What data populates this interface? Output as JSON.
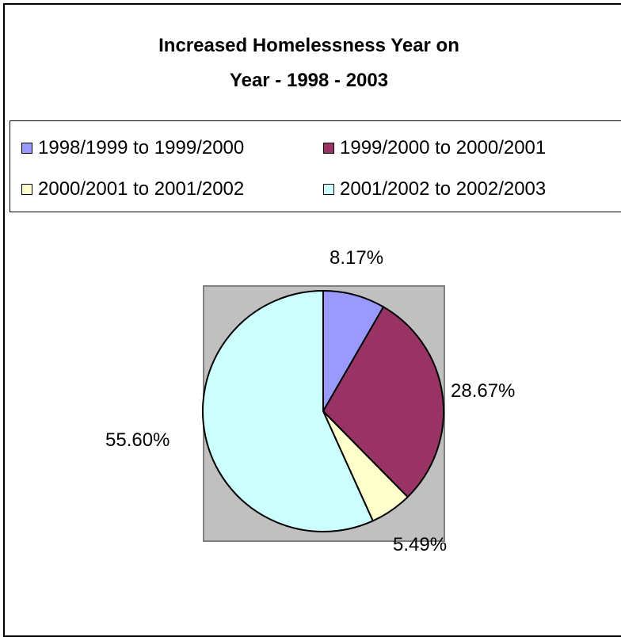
{
  "chart_data": {
    "type": "pie",
    "title_line1": "Increased Homelessness Year on",
    "title_line2": "Year - 1998 - 2003",
    "categories": [
      "1998/1999 to 1999/2000",
      "1999/2000 to 2000/2001",
      "2000/2001 to 2001/2002",
      "2001/2002 to 2002/2003"
    ],
    "values": [
      8.17,
      28.67,
      5.49,
      55.6
    ],
    "labels": [
      "8.17%",
      "28.67%",
      "5.49%",
      "55.60%"
    ],
    "colors": [
      "#9999ff",
      "#993366",
      "#ffffcc",
      "#ccffff"
    ],
    "plot_background": "#c0c0c0",
    "legend_position": "top"
  }
}
